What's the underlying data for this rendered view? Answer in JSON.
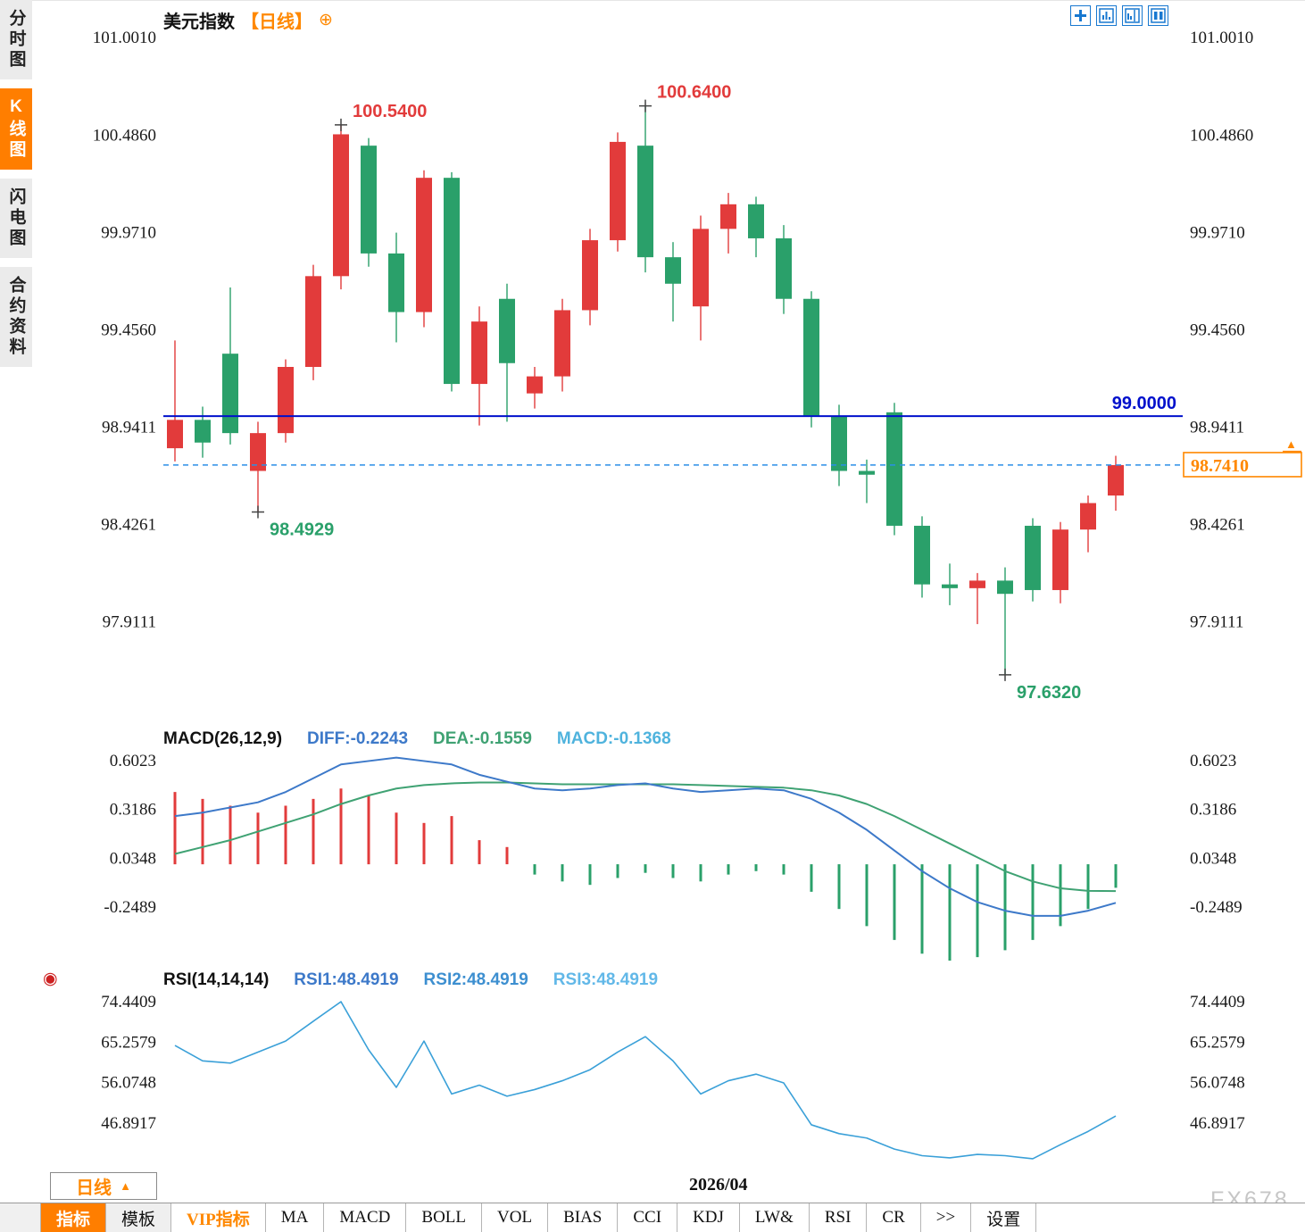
{
  "sidebar": {
    "tabs": [
      {
        "label": "分时图",
        "active": false
      },
      {
        "label": "K线图",
        "active": true
      },
      {
        "label": "闪电图",
        "active": false
      },
      {
        "label": "合约资料",
        "active": false
      }
    ]
  },
  "header": {
    "title": "美元指数",
    "period": "【日线】",
    "plus_icon": "⊕",
    "icons": [
      "layout-grid-icon",
      "layout-chart-left-icon",
      "layout-chart-right-icon",
      "layout-columns-icon"
    ],
    "icon_color": "#1878d0"
  },
  "chart_data": {
    "type": "candlestick-multi-panel",
    "symbol": "美元指数",
    "interval": "日线",
    "candle_format": "[open, high, low, close]",
    "main": {
      "axis_ticks": [
        "101.0010",
        "100.4860",
        "99.9710",
        "99.4560",
        "98.9411",
        "98.4261",
        "97.9111"
      ],
      "colors": {
        "up": "#e23b3b",
        "down": "#2aa06a"
      },
      "hline": {
        "value": 99.0,
        "label": "99.0000",
        "color": "#0010cc"
      },
      "current_price": {
        "value": 98.741,
        "label": "98.7410",
        "color": "#ff8800",
        "dash_color": "#2b8fe8"
      },
      "annotations": [
        {
          "label": "100.5400",
          "price": 100.54,
          "candle": 6,
          "type": "high",
          "color": "up"
        },
        {
          "label": "100.6400",
          "price": 100.64,
          "candle": 17,
          "type": "high",
          "color": "up"
        },
        {
          "label": "98.4929",
          "price": 98.4929,
          "candle": 3,
          "type": "low",
          "color": "down"
        },
        {
          "label": "97.6320",
          "price": 97.632,
          "candle": 30,
          "type": "low",
          "color": "down"
        }
      ],
      "candles": [
        [
          98.83,
          99.4,
          98.76,
          98.98
        ],
        [
          98.98,
          99.05,
          98.78,
          98.86
        ],
        [
          99.33,
          99.68,
          98.85,
          98.91
        ],
        [
          98.71,
          98.97,
          98.4929,
          98.91
        ],
        [
          98.91,
          99.3,
          98.86,
          99.26
        ],
        [
          99.26,
          99.8,
          99.19,
          99.74
        ],
        [
          99.74,
          100.54,
          99.67,
          100.49
        ],
        [
          100.43,
          100.47,
          99.79,
          99.86
        ],
        [
          99.86,
          99.97,
          99.39,
          99.55
        ],
        [
          99.55,
          100.3,
          99.47,
          100.26
        ],
        [
          100.26,
          100.29,
          99.13,
          99.17
        ],
        [
          99.17,
          99.58,
          98.95,
          99.5
        ],
        [
          99.62,
          99.7,
          98.97,
          99.28
        ],
        [
          99.12,
          99.26,
          99.04,
          99.21
        ],
        [
          99.21,
          99.62,
          99.13,
          99.56
        ],
        [
          99.56,
          99.99,
          99.48,
          99.93
        ],
        [
          99.93,
          100.5,
          99.87,
          100.45
        ],
        [
          100.43,
          100.64,
          99.76,
          99.84
        ],
        [
          99.84,
          99.92,
          99.5,
          99.7
        ],
        [
          99.58,
          100.06,
          99.4,
          99.99
        ],
        [
          99.99,
          100.18,
          99.86,
          100.12
        ],
        [
          100.12,
          100.16,
          99.84,
          99.94
        ],
        [
          99.94,
          100.01,
          99.54,
          99.62
        ],
        [
          99.62,
          99.66,
          98.94,
          99.0
        ],
        [
          99.0,
          99.06,
          98.63,
          98.71
        ],
        [
          98.71,
          98.77,
          98.54,
          98.69
        ],
        [
          99.02,
          99.07,
          98.37,
          98.42
        ],
        [
          98.42,
          98.47,
          98.04,
          98.11
        ],
        [
          98.11,
          98.22,
          98.0,
          98.09
        ],
        [
          98.09,
          98.17,
          97.9,
          98.13
        ],
        [
          98.13,
          98.2,
          97.632,
          98.06
        ],
        [
          98.42,
          98.46,
          98.02,
          98.08
        ],
        [
          98.08,
          98.44,
          98.01,
          98.4
        ],
        [
          98.4,
          98.58,
          98.28,
          98.54
        ],
        [
          98.58,
          98.79,
          98.5,
          98.741
        ]
      ]
    },
    "macd": {
      "title": "MACD(26,12,9)",
      "diff_label": "DIFF:-0.2243",
      "dea_label": "DEA:-0.1559",
      "macd_label": "MACD:-0.1368",
      "axis_ticks": [
        "0.6023",
        "0.3186",
        "0.0348",
        "-0.2489"
      ],
      "diff_color": "#3d79c9",
      "dea_color": "#3fa273",
      "diff": [
        0.28,
        0.3,
        0.33,
        0.36,
        0.42,
        0.5,
        0.58,
        0.6,
        0.62,
        0.6,
        0.58,
        0.52,
        0.48,
        0.44,
        0.43,
        0.44,
        0.46,
        0.47,
        0.44,
        0.42,
        0.43,
        0.44,
        0.43,
        0.38,
        0.3,
        0.2,
        0.08,
        -0.04,
        -0.14,
        -0.22,
        -0.27,
        -0.3,
        -0.3,
        -0.27,
        -0.2243
      ],
      "dea": [
        0.06,
        0.1,
        0.14,
        0.19,
        0.24,
        0.29,
        0.35,
        0.4,
        0.44,
        0.46,
        0.47,
        0.475,
        0.475,
        0.47,
        0.465,
        0.465,
        0.465,
        0.465,
        0.465,
        0.46,
        0.455,
        0.45,
        0.445,
        0.43,
        0.4,
        0.35,
        0.28,
        0.2,
        0.12,
        0.04,
        -0.04,
        -0.1,
        -0.14,
        -0.155,
        -0.1559
      ],
      "hist": [
        0.42,
        0.38,
        0.34,
        0.3,
        0.34,
        0.38,
        0.44,
        0.4,
        0.3,
        0.24,
        0.28,
        0.14,
        0.1,
        -0.06,
        -0.1,
        -0.12,
        -0.08,
        -0.05,
        -0.08,
        -0.1,
        -0.06,
        -0.04,
        -0.06,
        -0.16,
        -0.26,
        -0.36,
        -0.44,
        -0.52,
        -0.56,
        -0.54,
        -0.5,
        -0.44,
        -0.36,
        -0.26,
        -0.1368
      ]
    },
    "rsi": {
      "title": "RSI(14,14,14)",
      "rsi1_label": "RSI1:48.4919",
      "rsi2_label": "RSI2:48.4919",
      "rsi3_label": "RSI3:48.4919",
      "axis_ticks": [
        "74.4409",
        "65.2579",
        "56.0748",
        "46.8917"
      ],
      "line_color": "#3aa0d8",
      "values": [
        64.5,
        61.0,
        60.5,
        63.0,
        65.5,
        70.0,
        74.44,
        63.5,
        55.0,
        65.5,
        53.5,
        55.5,
        53.0,
        54.5,
        56.5,
        59.0,
        63.0,
        66.5,
        61.0,
        53.5,
        56.5,
        58.0,
        56.0,
        46.5,
        44.5,
        43.5,
        41.0,
        39.5,
        39.0,
        39.8,
        39.5,
        38.8,
        42.0,
        45.0,
        48.4919
      ]
    },
    "x_axis": {
      "date_label": "2026/04"
    }
  },
  "footer": {
    "period_label": "日线",
    "period_arrow": "▲",
    "watermark": "FX678",
    "toolbar": [
      {
        "label": "指标"
      },
      {
        "label": "模板"
      },
      {
        "label": "VIP指标"
      },
      {
        "label": "MA"
      },
      {
        "label": "MACD"
      },
      {
        "label": "BOLL"
      },
      {
        "label": "VOL"
      },
      {
        "label": "BIAS"
      },
      {
        "label": "CCI"
      },
      {
        "label": "KDJ"
      },
      {
        "label": "LW&"
      },
      {
        "label": "RSI"
      },
      {
        "label": "CR"
      },
      {
        "label": ">>"
      },
      {
        "label": "设置"
      }
    ]
  }
}
